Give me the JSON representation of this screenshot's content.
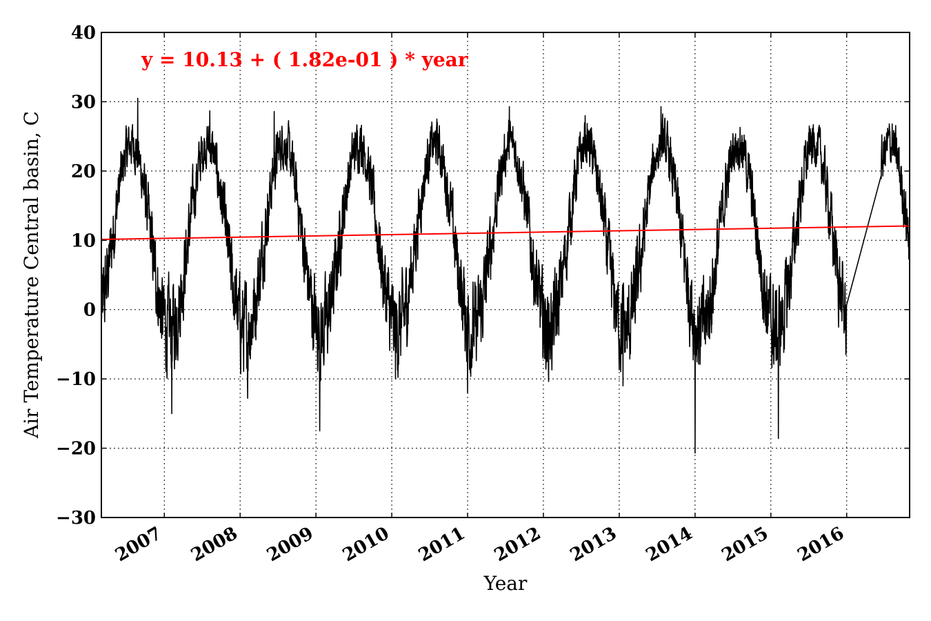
{
  "chart_data": {
    "type": "line",
    "xlabel": "Year",
    "ylabel": "Air Temperature Central basin, C",
    "ylim": [
      -30,
      40
    ],
    "yticks": [
      -30,
      -20,
      -10,
      0,
      10,
      20,
      30,
      40
    ],
    "ytick_labels": [
      "−30",
      "−20",
      "−10",
      "0",
      "10",
      "20",
      "30",
      "40"
    ],
    "xlim": [
      2006.17,
      2016.83
    ],
    "xticks": [
      2007,
      2008,
      2009,
      2010,
      2011,
      2012,
      2013,
      2014,
      2015,
      2016
    ],
    "xtick_labels": [
      "2007",
      "2008",
      "2009",
      "2010",
      "2011",
      "2012",
      "2013",
      "2014",
      "2015",
      "2016"
    ],
    "grid": true,
    "annotation": {
      "text": "y = 10.13 + ( 1.82e-01 ) * year",
      "color": "#ff0000"
    },
    "series": [
      {
        "kind": "daily_temperature",
        "color": "#000000",
        "gap": [
          2016.0,
          2016.45
        ],
        "seasonal_profile": {
          "description_values": "approximate daily air temperature, seasonal cycle with winter minima near 0 to -20 C and summer maxima near 20 to 30 C",
          "summer_peaks": [
            [
              2006.65,
              30.5
            ],
            [
              2007.6,
              28.7
            ],
            [
              2008.45,
              28.6
            ],
            [
              2009.6,
              26.6
            ],
            [
              2010.6,
              27.0
            ],
            [
              2011.55,
              29.3
            ],
            [
              2012.55,
              28.0
            ],
            [
              2013.55,
              29.3
            ],
            [
              2014.5,
              25.4
            ],
            [
              2015.5,
              25.5
            ],
            [
              2016.6,
              26.8
            ]
          ],
          "winter_troughs": [
            [
              2007.1,
              -15.0
            ],
            [
              2008.1,
              -12.8
            ],
            [
              2009.05,
              -17.5
            ],
            [
              2010.05,
              -10.0
            ],
            [
              2011.0,
              -12.0
            ],
            [
              2012.05,
              -7.5
            ],
            [
              2013.05,
              -11.0
            ],
            [
              2014.0,
              -20.7
            ],
            [
              2015.1,
              -18.6
            ]
          ]
        }
      },
      {
        "kind": "linear_trend",
        "color": "#ff0000",
        "intercept": 10.13,
        "slope": 0.182,
        "x": [
          2006.17,
          2016.83
        ],
        "y": [
          10.13,
          12.07
        ]
      }
    ]
  }
}
